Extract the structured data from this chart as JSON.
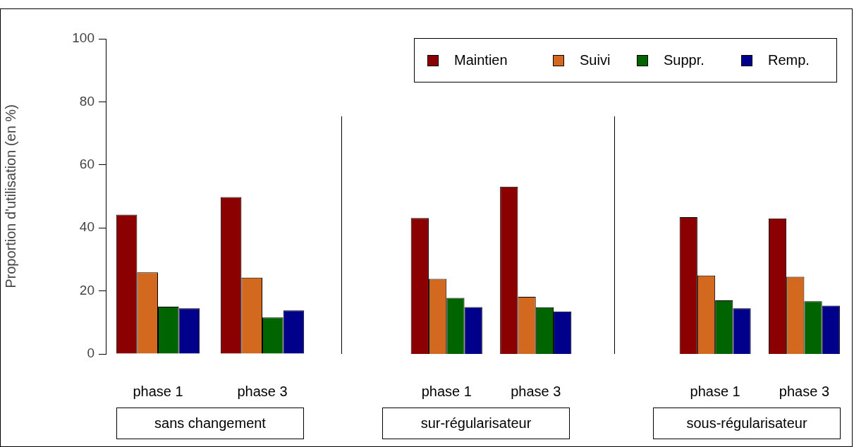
{
  "chart_data": [
    {
      "type": "bar",
      "categories": [
        "phase 1",
        "phase 3"
      ],
      "xlabel": "sans changement",
      "ylabel": "Proportion d'utilisation (en %)",
      "ylim": [
        0,
        100
      ],
      "yticks": [
        0,
        20,
        40,
        60,
        80,
        100
      ],
      "grid": false,
      "legend": false,
      "series": [
        {
          "color": "#8b0000",
          "values": [
            44.2,
            49.8
          ]
        },
        {
          "color": "#d2691e",
          "values": [
            25.9,
            24.2
          ]
        },
        {
          "color": "#006400",
          "values": [
            15.0,
            11.6
          ]
        },
        {
          "color": "#00008b",
          "values": [
            14.5,
            13.8
          ]
        }
      ]
    },
    {
      "type": "bar",
      "categories": [
        "phase 1",
        "phase 3"
      ],
      "xlabel": "sur-régularisateur",
      "ylim": [
        0,
        100
      ],
      "tick_labels": "x",
      "grid": false,
      "legend": "top right",
      "series": [
        {
          "name": "Maintien",
          "color": "#8b0000",
          "values": [
            43.1,
            53.1
          ]
        },
        {
          "name": "Suivi",
          "color": "#d2691e",
          "values": [
            23.8,
            18.1
          ]
        },
        {
          "name": "Suppr.",
          "color": "#006400",
          "values": [
            17.8,
            14.8
          ]
        },
        {
          "name": "Remp.",
          "color": "#00008b",
          "values": [
            14.9,
            13.5
          ]
        }
      ]
    },
    {
      "type": "bar",
      "categories": [
        "phase 1",
        "phase 3"
      ],
      "xlabel": "sous-régularisateur",
      "ylim": [
        0,
        100
      ],
      "tick_labels": "x",
      "grid": false,
      "legend": false,
      "series": [
        {
          "color": "#8b0000",
          "values": [
            43.4,
            43.0
          ]
        },
        {
          "color": "#d2691e",
          "values": [
            24.9,
            24.5
          ]
        },
        {
          "color": "#006400",
          "values": [
            17.0,
            16.7
          ]
        },
        {
          "color": "#00008b",
          "values": [
            14.5,
            15.3
          ]
        }
      ]
    }
  ]
}
